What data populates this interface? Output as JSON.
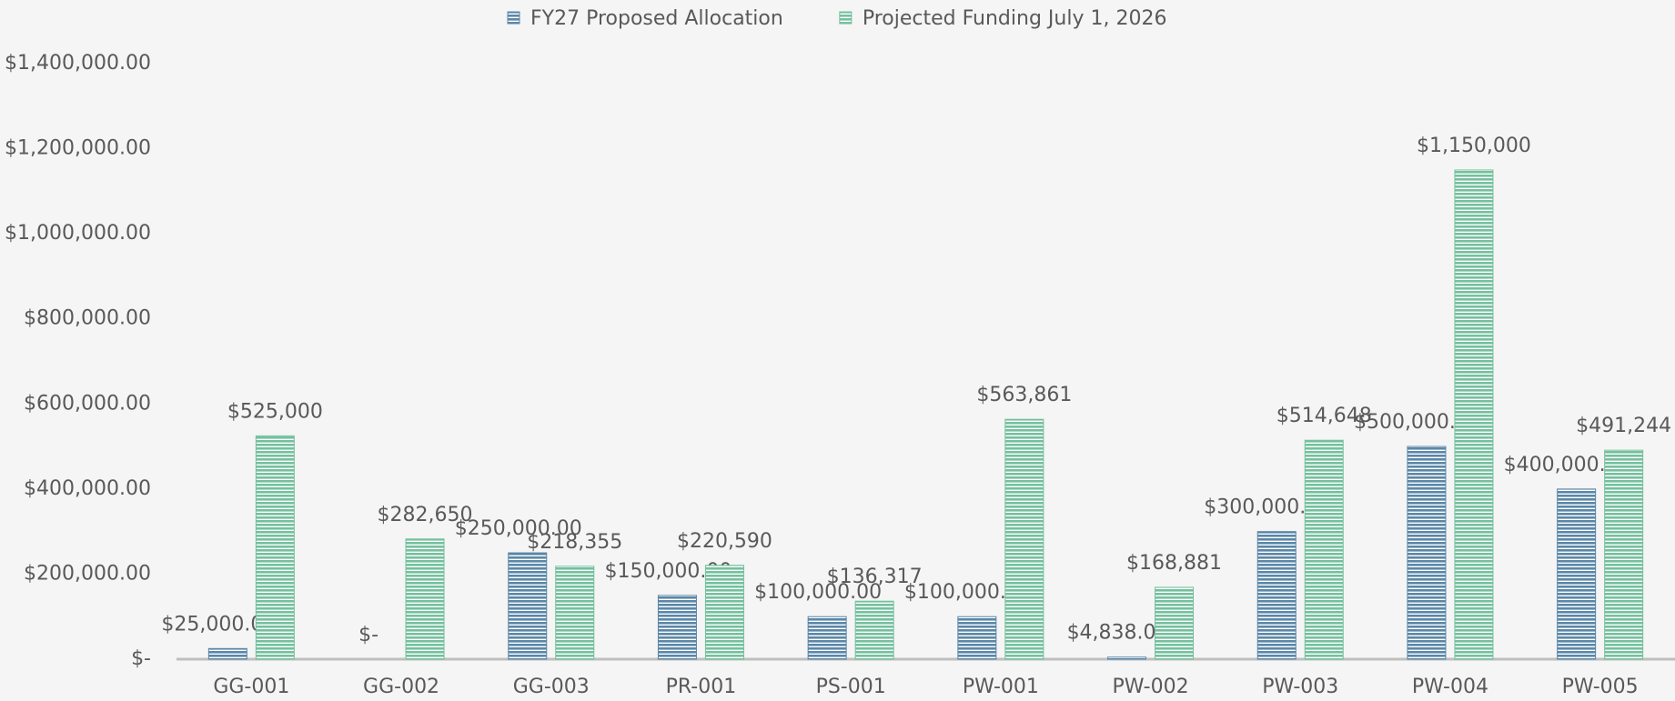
{
  "chart_data": {
    "type": "bar",
    "categories": [
      "GG-001",
      "GG-002",
      "GG-003",
      "PR-001",
      "PS-001",
      "PW-001",
      "PW-002",
      "PW-003",
      "PW-004",
      "PW-005"
    ],
    "series": [
      {
        "name": "FY27 Proposed Allocation",
        "color": "#5b87a8",
        "values": [
          25000,
          0,
          250000,
          150000,
          100000,
          100000,
          4838,
          300000,
          500000,
          400000
        ],
        "value_labels": [
          "$25,000.00",
          "$-",
          "$250,000.00",
          "$150,000.00",
          "$100,000.00",
          "$100,000.00",
          "$4,838.00",
          "$300,000.00",
          "$500,000.00",
          "$400,000.00"
        ]
      },
      {
        "name": "Projected Funding July 1, 2026",
        "color": "#74c09e",
        "values": [
          525000,
          282650,
          218355,
          220590,
          136317,
          563861,
          168881,
          514648,
          1150000,
          491244
        ],
        "value_labels": [
          "$525,000",
          "$282,650",
          "$218,355",
          "$220,590",
          "$136,317",
          "$563,861",
          "$168,881",
          "$514,648",
          "$1,150,000",
          "$491,244"
        ]
      }
    ],
    "ylim": [
      0,
      1400000
    ],
    "yticks": [
      {
        "value": 0,
        "label": "$-"
      },
      {
        "value": 200000,
        "label": "$200,000.00"
      },
      {
        "value": 400000,
        "label": "$400,000.00"
      },
      {
        "value": 600000,
        "label": "$600,000.00"
      },
      {
        "value": 800000,
        "label": "$800,000.00"
      },
      {
        "value": 1000000,
        "label": "$1,000,000.00"
      },
      {
        "value": 1200000,
        "label": "$1,200,000.00"
      },
      {
        "value": 1400000,
        "label": "$1,400,000.00"
      }
    ],
    "legend": "top"
  }
}
